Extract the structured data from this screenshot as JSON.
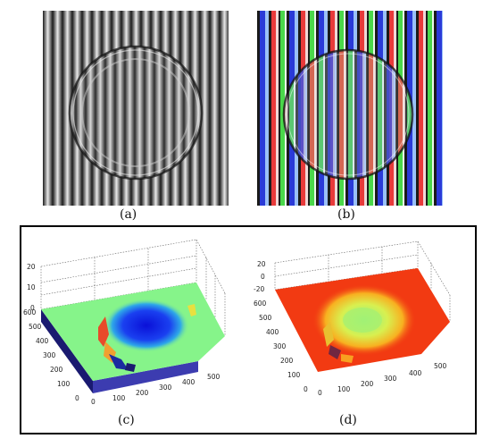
{
  "captions": {
    "a": "(a)",
    "b": "(b)",
    "c": "(c)",
    "d": "(d)"
  },
  "plot_c": {
    "z_ticks": [
      "20",
      "10",
      "0"
    ],
    "y_ticks": [
      "600",
      "500",
      "400",
      "300",
      "200",
      "100",
      "0"
    ],
    "x_ticks": [
      "0",
      "100",
      "200",
      "300",
      "400",
      "500"
    ]
  },
  "plot_d": {
    "z_ticks": [
      "20",
      "0",
      "-20"
    ],
    "y_ticks": [
      "600",
      "500",
      "400",
      "300",
      "200",
      "100",
      "0"
    ],
    "x_ticks": [
      "0",
      "100",
      "200",
      "300",
      "400",
      "500"
    ]
  },
  "colors": {
    "fringe_light": "#e8e8e8",
    "fringe_dark": "#1a1a1a",
    "surface_green": "#86f48a",
    "surface_blue": "#0a1ff0",
    "surface_red": "#f23a12",
    "side_blue": "#3c3cb0",
    "side_navy": "#1a1a70"
  }
}
